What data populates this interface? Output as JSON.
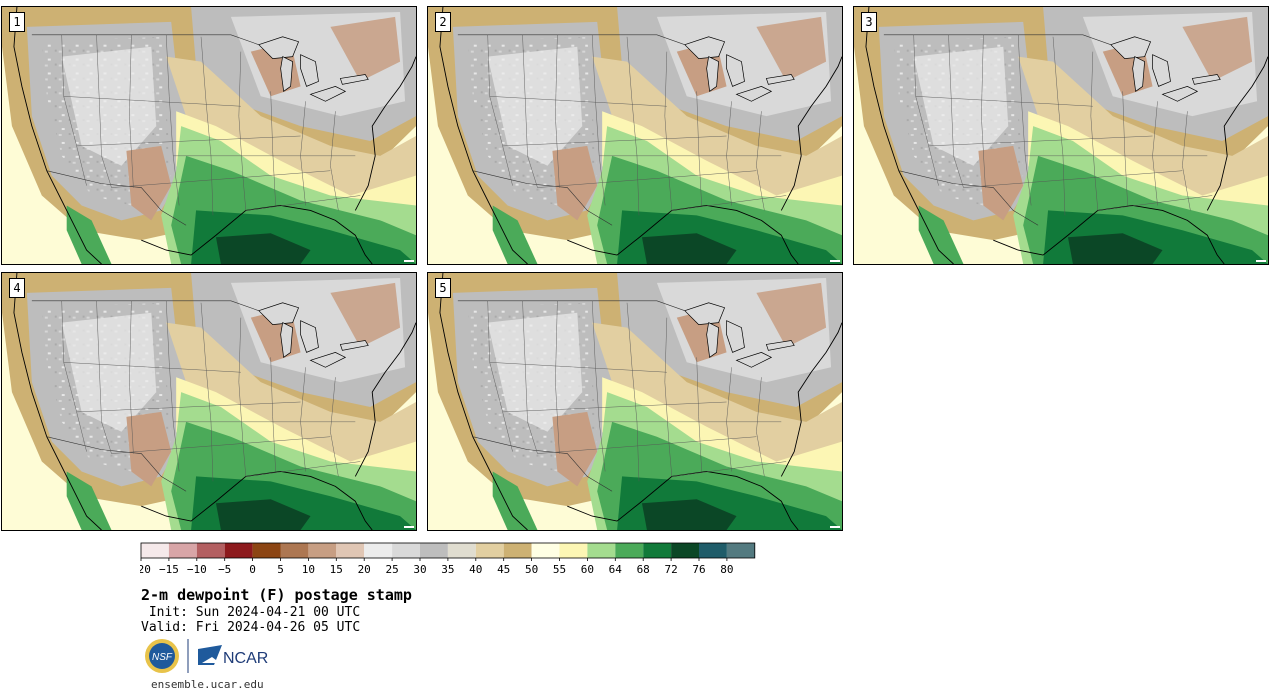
{
  "title": "2-m dewpoint (F) postage stamp",
  "init": "Init: Sun 2024-04-21 00 UTC",
  "valid": "Valid: Fri 2024-04-26 05 UTC",
  "website": "ensemble.ucar.edu",
  "logos": {
    "nsf_text": "NSF",
    "ncar_text": "NCAR"
  },
  "panels": [
    {
      "number": "1"
    },
    {
      "number": "2"
    },
    {
      "number": "3"
    },
    {
      "number": "4"
    },
    {
      "number": "5"
    }
  ],
  "colorbar": {
    "tick_labels": [
      "−20",
      "−15",
      "−10",
      "−5",
      "0",
      "5",
      "10",
      "15",
      "20",
      "25",
      "30",
      "35",
      "40",
      "45",
      "50",
      "55",
      "60",
      "64",
      "68",
      "72",
      "76",
      "80"
    ],
    "colors": [
      "#f5e9ea",
      "#d8a5a7",
      "#b35f61",
      "#8d1a1d",
      "#8c4513",
      "#ad7752",
      "#c79e83",
      "#e0c6b4",
      "#ececec",
      "#d9d9d9",
      "#bdbdbd",
      "#e0ddd0",
      "#e2cfa1",
      "#cdb173",
      "#ffffe4",
      "#fcf6b4",
      "#a4dc8f",
      "#4baa59",
      "#117a3a",
      "#0b4726",
      "#1f5c69",
      "#537a80"
    ]
  },
  "colors": {
    "ocean": "#fefcd6",
    "gulf_dark": "#0b4726",
    "gulf": "#117a3a",
    "moist": "#4baa59",
    "moist_light": "#a4dc8f",
    "tan": "#cdb173",
    "tan_light": "#e2cfa1",
    "gray": "#bdbdbd",
    "gray_light": "#ececec",
    "brown": "#c79e83",
    "yellow": "#fcf6b4"
  }
}
